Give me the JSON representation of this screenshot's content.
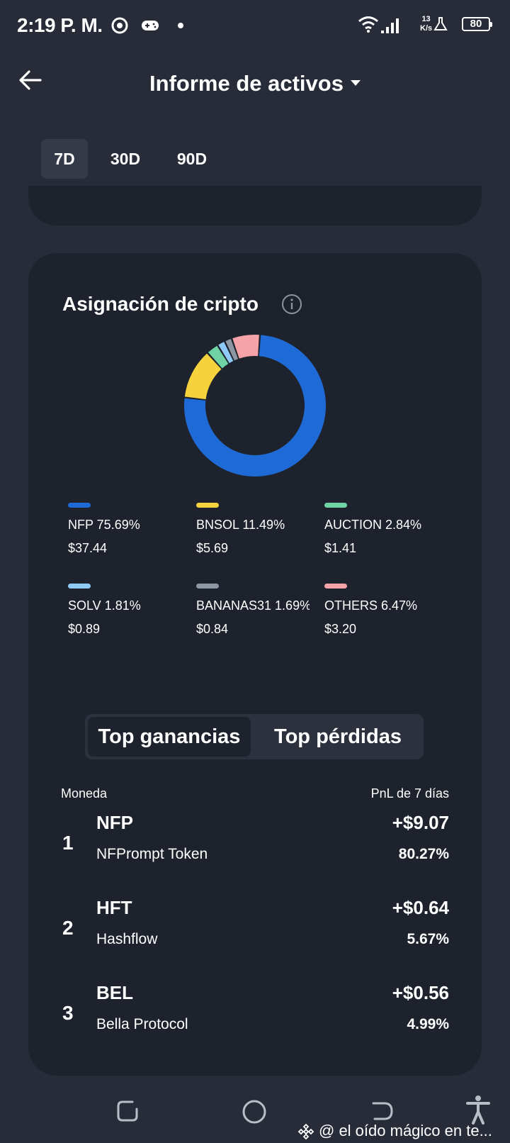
{
  "status": {
    "time": "2:19 P. M.",
    "net_speed_value": "13",
    "net_speed_unit": "K/s",
    "battery": "80"
  },
  "header": {
    "title": "Informe de activos"
  },
  "periods": [
    {
      "label": "7D",
      "active": true
    },
    {
      "label": "30D",
      "active": false
    },
    {
      "label": "90D",
      "active": false
    }
  ],
  "allocation": {
    "title": "Asignación de cripto",
    "legend": [
      {
        "label": "NFP 75.69%",
        "value": "$37.44",
        "color": "#1e6bd8"
      },
      {
        "label": "BNSOL 11.49%",
        "value": "$5.69",
        "color": "#f6d33d"
      },
      {
        "label": "AUCTION 2.84%",
        "value": "$1.41",
        "color": "#6fd3a6"
      },
      {
        "label": "SOLV 1.81%",
        "value": "$0.89",
        "color": "#8ec9f7"
      },
      {
        "label": "BANANAS31 1.69%",
        "value": "$0.84",
        "color": "#8d96a3"
      },
      {
        "label": "OTHERS 6.47%",
        "value": "$3.20",
        "color": "#f5a3a8"
      }
    ]
  },
  "chart_data": {
    "type": "pie",
    "title": "Asignación de cripto",
    "categories": [
      "NFP",
      "BNSOL",
      "AUCTION",
      "SOLV",
      "BANANAS31",
      "OTHERS"
    ],
    "values": [
      75.69,
      11.49,
      2.84,
      1.81,
      1.69,
      6.47
    ],
    "amounts": [
      "$37.44",
      "$5.69",
      "$1.41",
      "$0.89",
      "$0.84",
      "$3.20"
    ],
    "colors": [
      "#1e6bd8",
      "#f6d33d",
      "#6fd3a6",
      "#8ec9f7",
      "#8d96a3",
      "#f5a3a8"
    ]
  },
  "tabs": {
    "gainers": "Top ganancias",
    "losers": "Top pérdidas"
  },
  "list": {
    "col_coin": "Moneda",
    "col_pnl": "PnL de 7 días",
    "rows": [
      {
        "rank": "1",
        "symbol": "NFP",
        "name": "NFPrompt Token",
        "pnl": "+$9.07",
        "pct": "80.27%"
      },
      {
        "rank": "2",
        "symbol": "HFT",
        "name": "Hashflow",
        "pnl": "+$0.64",
        "pct": "5.67%"
      },
      {
        "rank": "3",
        "symbol": "BEL",
        "name": "Bella Protocol",
        "pnl": "+$0.56",
        "pct": "4.99%"
      }
    ]
  },
  "watermark": "@ el oído mágico en te..."
}
